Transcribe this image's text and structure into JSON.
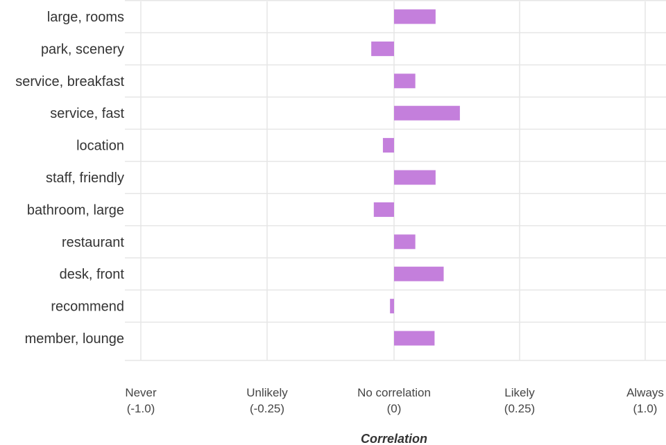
{
  "chart_data": {
    "type": "bar",
    "orientation": "horizontal",
    "categories": [
      "large, rooms",
      "park, scenery",
      "service, breakfast",
      "service, fast",
      "location",
      "staff, friendly",
      "bathroom, large",
      "restaurant",
      "desk, front",
      "recommend",
      "member, lounge"
    ],
    "values": [
      0.082,
      -0.045,
      0.042,
      0.13,
      -0.022,
      0.082,
      -0.04,
      0.042,
      0.098,
      -0.008,
      0.08
    ],
    "xlabel": "Correlation",
    "ticks": [
      {
        "line1": "Never",
        "line2": "(-1.0)"
      },
      {
        "line1": "Unlikely",
        "line2": "(-0.25)"
      },
      {
        "line1": "No correlation",
        "line2": "(0)"
      },
      {
        "line1": "Likely",
        "line2": "(0.25)"
      },
      {
        "line1": "Always",
        "line2": "(1.0)"
      }
    ],
    "xlim": [
      -0.5,
      0.5
    ],
    "grid": true,
    "bar_color": "#c47fdc",
    "grid_color": "#e6e6e6"
  }
}
